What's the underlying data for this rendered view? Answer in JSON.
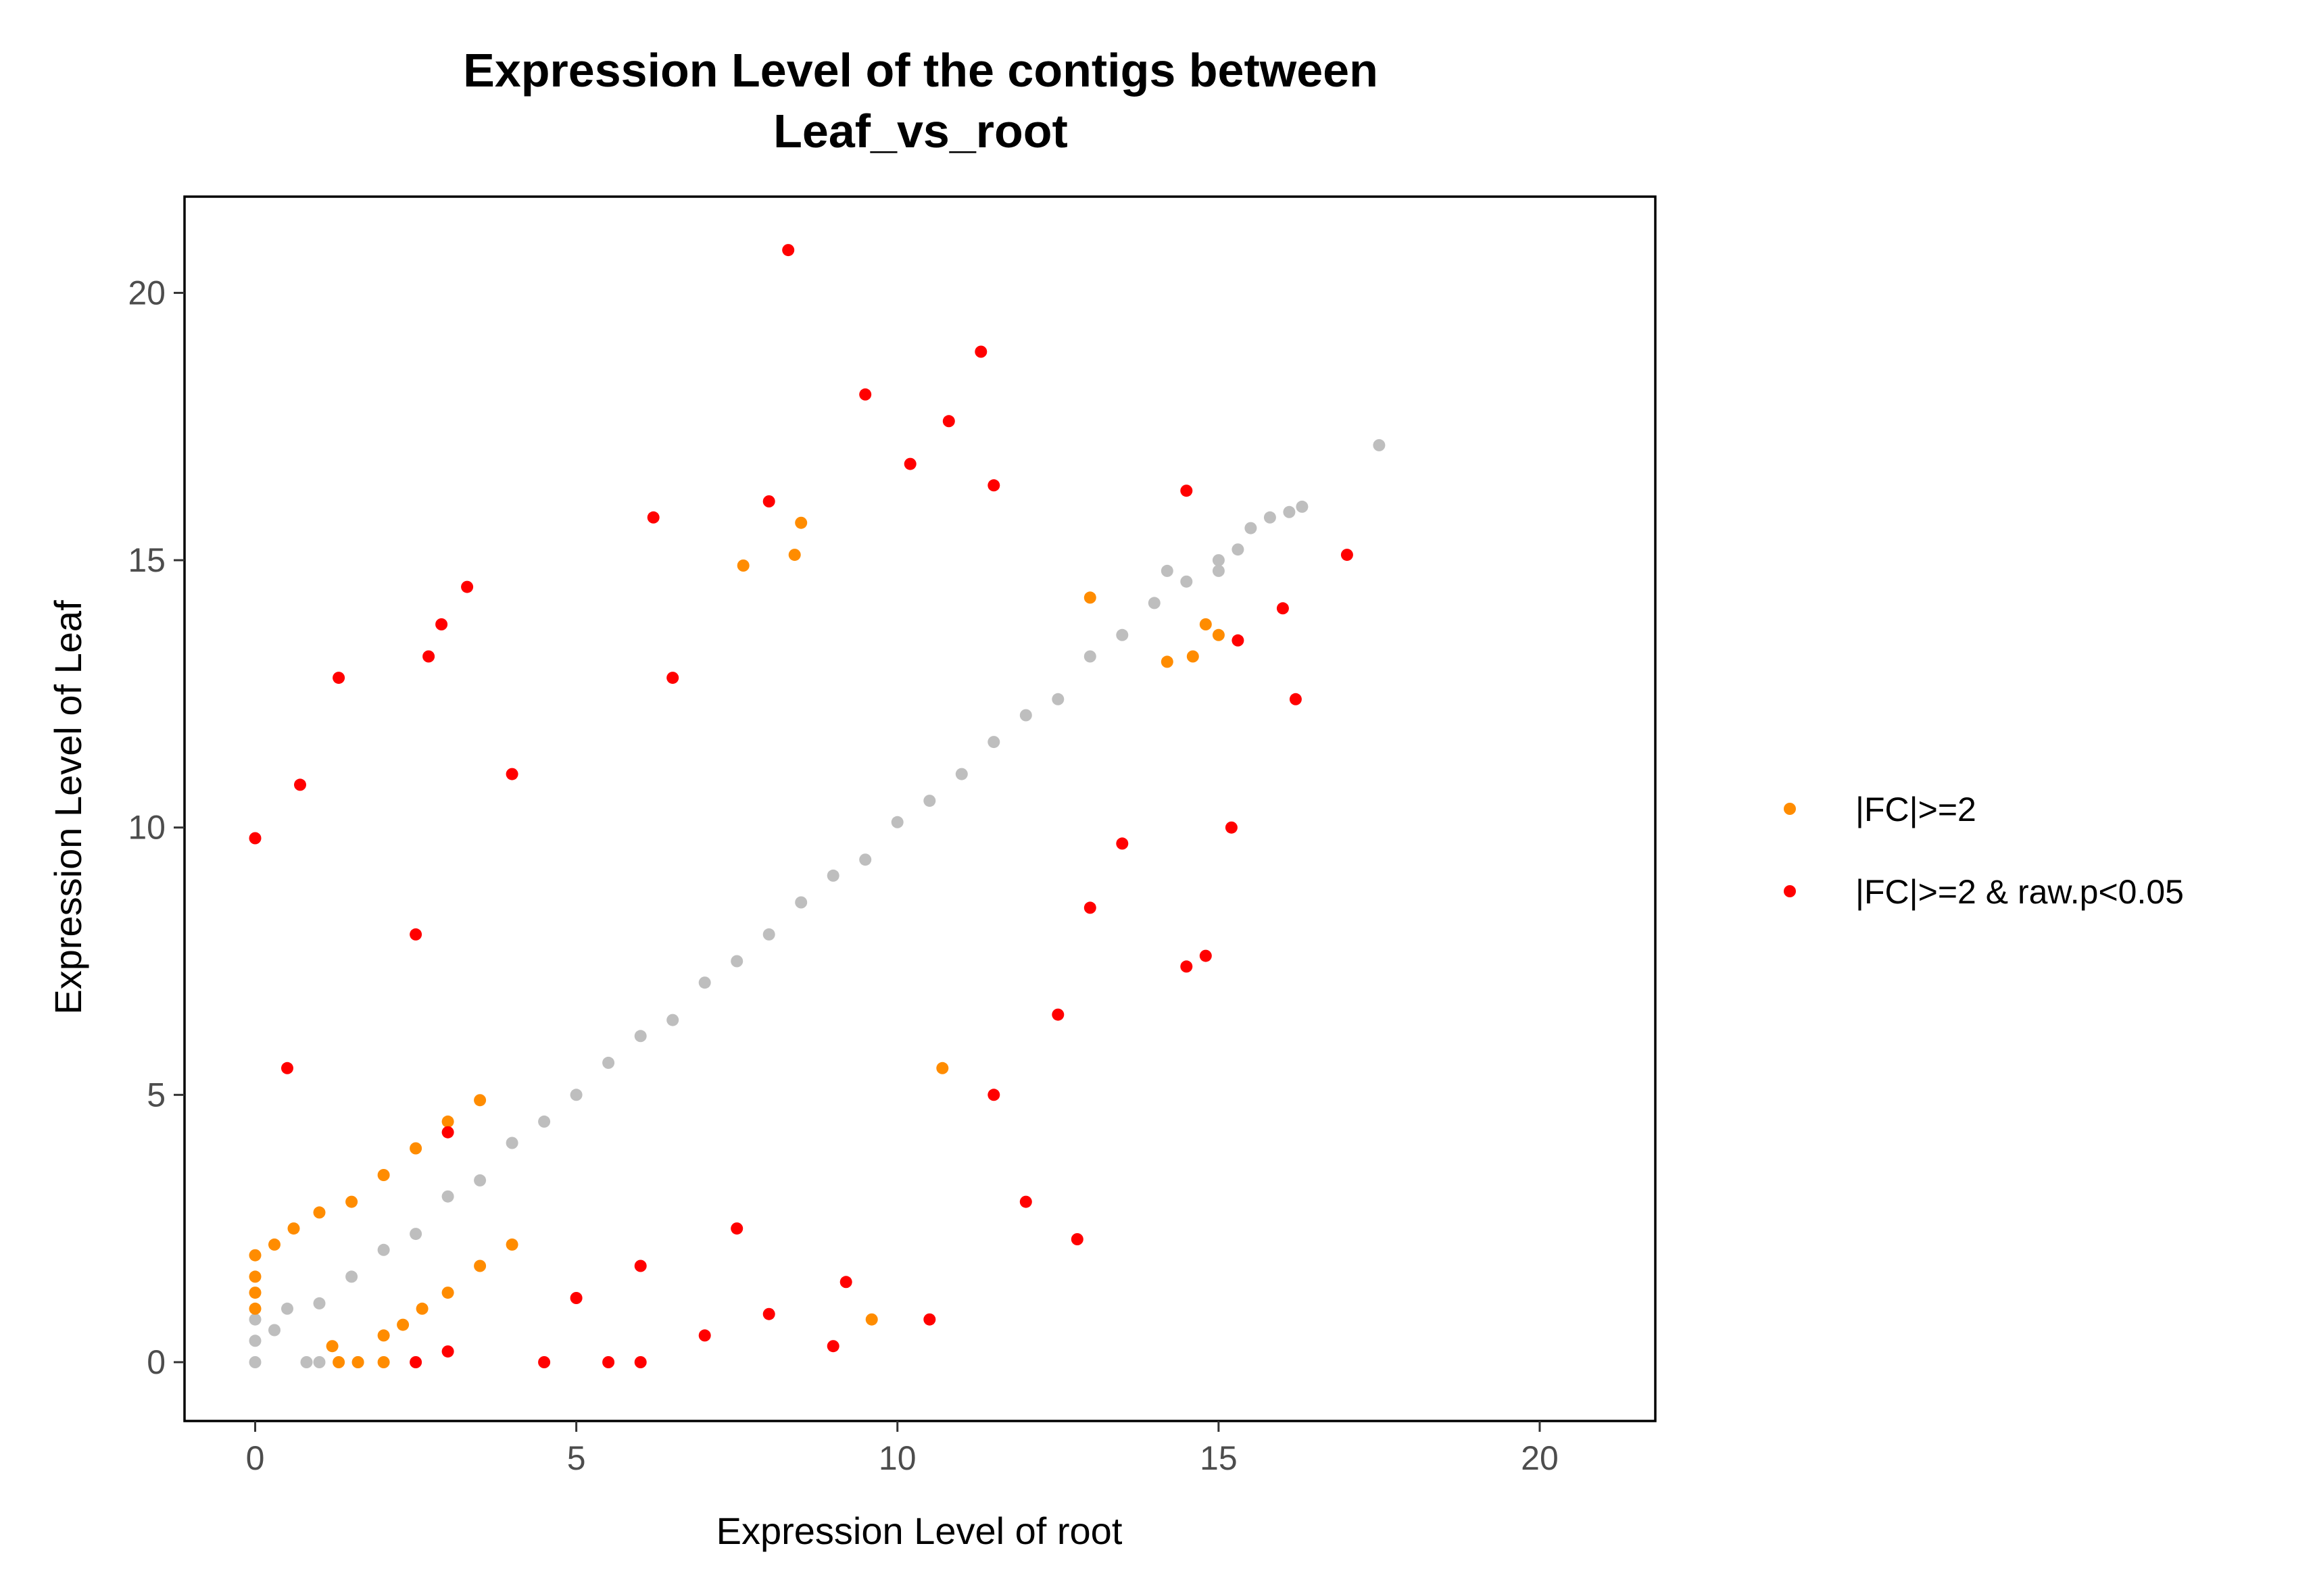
{
  "chart_data": {
    "type": "scatter",
    "title": "Expression Level of the contigs between",
    "subtitle": "Leaf_vs_root",
    "xlabel": "Expression Level of root",
    "ylabel": "Expression Level of Leaf",
    "xlim": [
      -1.1,
      21.8
    ],
    "ylim": [
      -1.1,
      21.8
    ],
    "xticks": [
      0,
      5,
      10,
      15,
      20
    ],
    "yticks": [
      0,
      5,
      10,
      15,
      20
    ],
    "xtick_labels": [
      "0",
      "5",
      "10",
      "15",
      "20"
    ],
    "ytick_labels": [
      "0",
      "5",
      "10",
      "15",
      "20"
    ],
    "grid": false,
    "legend_position": "right",
    "colors": {
      "not_significant": "#bebebe",
      "fc_only": "#ff8c00",
      "fc_and_p": "#ff0000"
    },
    "series": [
      {
        "key": "not_significant",
        "color": "#bebebe",
        "in_legend": false,
        "points": [
          [
            0,
            0
          ],
          [
            0,
            0.4
          ],
          [
            0,
            0.8
          ],
          [
            0.3,
            0.6
          ],
          [
            0.5,
            1.0
          ],
          [
            1,
            1.1
          ],
          [
            1.5,
            1.6
          ],
          [
            2,
            2.1
          ],
          [
            2.5,
            2.4
          ],
          [
            3,
            3.1
          ],
          [
            3.5,
            3.4
          ],
          [
            4,
            4.1
          ],
          [
            4.5,
            4.5
          ],
          [
            5,
            5.0
          ],
          [
            5.5,
            5.6
          ],
          [
            6,
            6.1
          ],
          [
            6.5,
            6.4
          ],
          [
            7,
            7.1
          ],
          [
            7.5,
            7.5
          ],
          [
            8,
            8.0
          ],
          [
            8.5,
            8.6
          ],
          [
            9,
            9.1
          ],
          [
            9.5,
            9.4
          ],
          [
            10,
            10.1
          ],
          [
            10.5,
            10.5
          ],
          [
            11,
            11.0
          ],
          [
            11.5,
            11.6
          ],
          [
            12,
            12.1
          ],
          [
            12.5,
            12.4
          ],
          [
            13,
            13.2
          ],
          [
            13.5,
            13.6
          ],
          [
            14,
            14.2
          ],
          [
            14.5,
            14.6
          ],
          [
            15,
            15.0
          ],
          [
            15.5,
            15.6
          ],
          [
            15.8,
            15.8
          ],
          [
            16.1,
            15.9
          ],
          [
            16.3,
            16.0
          ],
          [
            17.5,
            17.15
          ],
          [
            1.0,
            0
          ],
          [
            1.6,
            0
          ],
          [
            0.8,
            0
          ],
          [
            14.2,
            14.8
          ],
          [
            15.0,
            14.8
          ],
          [
            15.3,
            15.2
          ]
        ]
      },
      {
        "key": "fc_only",
        "name": "|FC|>=2",
        "color": "#ff8c00",
        "in_legend": true,
        "points": [
          [
            0,
            1.3
          ],
          [
            0,
            1.6
          ],
          [
            0,
            2.0
          ],
          [
            0,
            1.0
          ],
          [
            0.3,
            2.2
          ],
          [
            0.6,
            2.5
          ],
          [
            1,
            2.8
          ],
          [
            1.5,
            3.0
          ],
          [
            2,
            3.5
          ],
          [
            2.5,
            4.0
          ],
          [
            3,
            4.5
          ],
          [
            3.5,
            4.9
          ],
          [
            1.2,
            0.3
          ],
          [
            1.6,
            0
          ],
          [
            2.0,
            0.5
          ],
          [
            2.3,
            0.7
          ],
          [
            2.6,
            1.0
          ],
          [
            3.0,
            1.3
          ],
          [
            3.5,
            1.8
          ],
          [
            4.0,
            2.2
          ],
          [
            1.3,
            0
          ],
          [
            2.0,
            0
          ],
          [
            8.5,
            15.7
          ],
          [
            8.4,
            15.1
          ],
          [
            7.6,
            14.9
          ],
          [
            10.7,
            5.5
          ],
          [
            9.6,
            0.8
          ],
          [
            14.2,
            13.1
          ],
          [
            14.6,
            13.2
          ],
          [
            15.0,
            13.6
          ],
          [
            13.0,
            14.3
          ],
          [
            14.8,
            13.8
          ]
        ]
      },
      {
        "key": "fc_and_p",
        "name": "|FC|>=2 & raw.p<0.05",
        "color": "#ff0000",
        "in_legend": true,
        "points": [
          [
            8.3,
            20.8
          ],
          [
            11.3,
            18.9
          ],
          [
            9.5,
            18.1
          ],
          [
            10.8,
            17.6
          ],
          [
            10.2,
            16.8
          ],
          [
            11.5,
            16.4
          ],
          [
            8.0,
            16.1
          ],
          [
            6.2,
            15.8
          ],
          [
            14.5,
            16.3
          ],
          [
            17.0,
            15.1
          ],
          [
            3.3,
            14.5
          ],
          [
            2.9,
            13.8
          ],
          [
            2.7,
            13.2
          ],
          [
            1.3,
            12.8
          ],
          [
            0,
            9.8
          ],
          [
            0.7,
            10.8
          ],
          [
            3.0,
            4.3
          ],
          [
            0.5,
            5.5
          ],
          [
            2.5,
            8.0
          ],
          [
            4.0,
            11.0
          ],
          [
            6.5,
            12.8
          ],
          [
            15.3,
            13.5
          ],
          [
            16.0,
            14.1
          ],
          [
            16.2,
            12.4
          ],
          [
            15.2,
            10.0
          ],
          [
            14.8,
            7.6
          ],
          [
            14.5,
            7.4
          ],
          [
            12.8,
            2.3
          ],
          [
            12.0,
            3.0
          ],
          [
            10.5,
            0.8
          ],
          [
            9.2,
            1.5
          ],
          [
            8.0,
            0.9
          ],
          [
            6.0,
            1.8
          ],
          [
            5.0,
            1.2
          ],
          [
            7.5,
            2.5
          ],
          [
            13.5,
            9.7
          ],
          [
            13.0,
            8.5
          ],
          [
            11.5,
            5.0
          ],
          [
            12.5,
            6.5
          ],
          [
            4.5,
            0
          ],
          [
            2.5,
            0
          ],
          [
            3.0,
            0.2
          ],
          [
            6.0,
            0
          ],
          [
            7.0,
            0.5
          ],
          [
            5.5,
            0
          ],
          [
            9.0,
            0.3
          ]
        ]
      }
    ]
  }
}
